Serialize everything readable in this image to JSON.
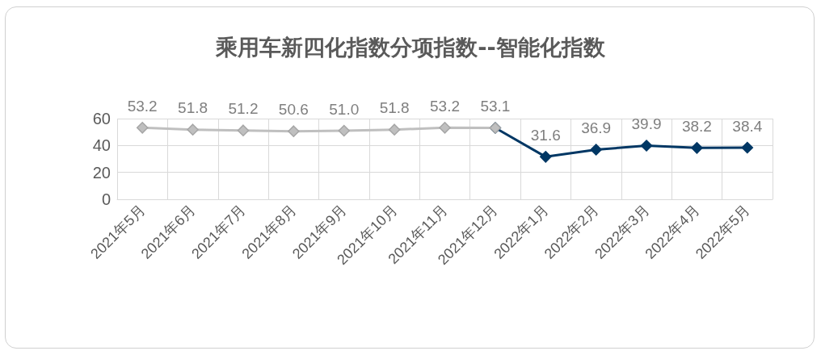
{
  "chart_data": {
    "type": "line",
    "title": "乘用车新四化指数分项指数--智能化指数",
    "categories": [
      "2021年5月",
      "2021年6月",
      "2021年7月",
      "2021年8月",
      "2021年9月",
      "2021年10月",
      "2021年11月",
      "2021年12月",
      "2022年1月",
      "2022年2月",
      "2022年3月",
      "2022年4月",
      "2022年5月"
    ],
    "series": [
      {
        "color": "#bfbfbf",
        "values": [
          53.2,
          51.8,
          51.2,
          50.6,
          51.0,
          51.8,
          53.2,
          53.1,
          null,
          null,
          null,
          null,
          null
        ],
        "value_labels": [
          "53.2",
          "51.8",
          "51.2",
          "50.6",
          "51.0",
          "51.8",
          "53.2",
          "53.1",
          null,
          null,
          null,
          null,
          null
        ]
      },
      {
        "color": "#003764",
        "values": [
          null,
          null,
          null,
          null,
          null,
          null,
          null,
          53.1,
          31.6,
          36.9,
          39.9,
          38.2,
          38.4
        ],
        "value_labels": [
          null,
          null,
          null,
          null,
          null,
          null,
          null,
          null,
          "31.6",
          "36.9",
          "39.9",
          "38.2",
          "38.4"
        ]
      }
    ],
    "ylim": [
      0,
      60
    ],
    "yticks": [
      0,
      20,
      40,
      60
    ],
    "grid": true,
    "marker": "diamond",
    "line_style": "solid"
  }
}
